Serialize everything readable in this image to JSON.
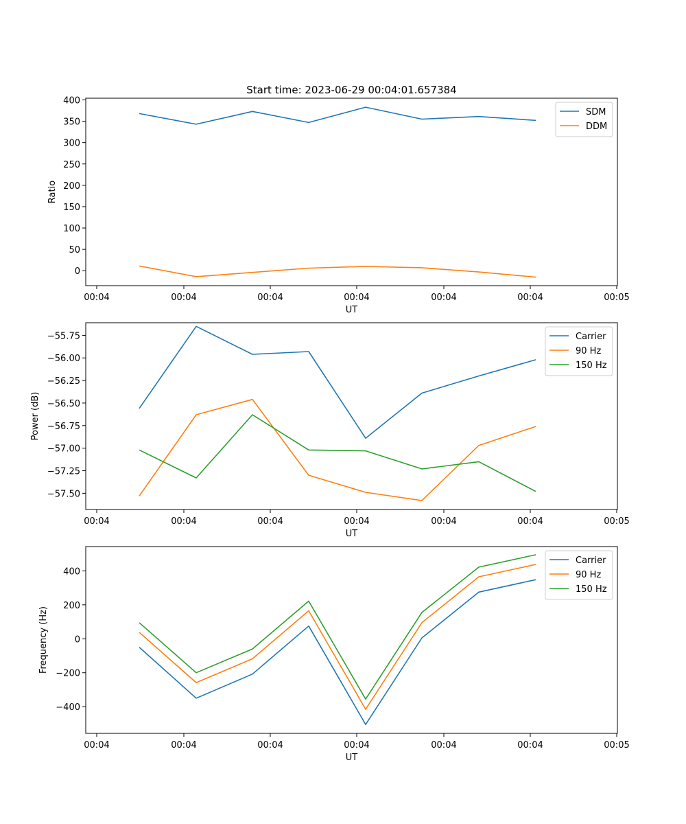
{
  "figure_title": "Start time: 2023-06-29 00:04:01.657384",
  "colors": {
    "carrier": "#1f77b4",
    "hz90": "#ff7f0e",
    "hz150": "#2ca02c"
  },
  "chart_data": [
    {
      "type": "line",
      "title": "Start time: 2023-06-29 00:04:01.657384",
      "xlabel": "UT",
      "ylabel": "Ratio",
      "x_tick_labels": [
        "00:04",
        "00:04",
        "00:04",
        "00:04",
        "00:04",
        "00:04",
        "00:04",
        "00:05"
      ],
      "y_ticks": [
        0,
        50,
        100,
        150,
        200,
        250,
        300,
        350,
        400
      ],
      "y_tick_labels": [
        "0",
        "50",
        "100",
        "150",
        "200",
        "250",
        "300",
        "350",
        "400"
      ],
      "ylim": [
        -35,
        404
      ],
      "legend_position": "top-right",
      "series": [
        {
          "name": "SDM",
          "color": "#1f77b4",
          "values": [
            368,
            343,
            373,
            347,
            383,
            355,
            361,
            352
          ]
        },
        {
          "name": "DDM",
          "color": "#ff7f0e",
          "values": [
            11,
            -14,
            -4,
            6,
            10,
            7,
            -3,
            -15
          ]
        }
      ]
    },
    {
      "type": "line",
      "xlabel": "UT",
      "ylabel": "Power (dB)",
      "x_tick_labels": [
        "00:04",
        "00:04",
        "00:04",
        "00:04",
        "00:04",
        "00:04",
        "00:04",
        "00:05"
      ],
      "y_ticks": [
        -57.5,
        -57.25,
        -57.0,
        -56.75,
        -56.5,
        -56.25,
        -56.0,
        -55.75
      ],
      "y_tick_labels": [
        "−57.50",
        "−57.25",
        "−57.00",
        "−56.75",
        "−56.50",
        "−56.25",
        "−56.00",
        "−55.75"
      ],
      "ylim": [
        -57.68,
        -55.61
      ],
      "legend_position": "top-right",
      "series": [
        {
          "name": "Carrier",
          "color": "#1f77b4",
          "values": [
            -56.56,
            -55.65,
            -55.96,
            -55.93,
            -56.89,
            -56.39,
            -56.2,
            -56.02
          ]
        },
        {
          "name": "90 Hz",
          "color": "#ff7f0e",
          "values": [
            -57.53,
            -56.63,
            -56.46,
            -57.3,
            -57.49,
            -57.58,
            -56.97,
            -56.76
          ]
        },
        {
          "name": "150 Hz",
          "color": "#2ca02c",
          "values": [
            -57.02,
            -57.33,
            -56.63,
            -57.02,
            -57.03,
            -57.23,
            -57.15,
            -57.48
          ]
        }
      ]
    },
    {
      "type": "line",
      "xlabel": "UT",
      "ylabel": "Frequency (Hz)",
      "x_tick_labels": [
        "00:04",
        "00:04",
        "00:04",
        "00:04",
        "00:04",
        "00:04",
        "00:04",
        "00:05"
      ],
      "y_ticks": [
        -400,
        -200,
        0,
        200,
        400
      ],
      "y_tick_labels": [
        "−400",
        "−200",
        "0",
        "200",
        "400"
      ],
      "ylim": [
        -557,
        543
      ],
      "legend_position": "top-right",
      "series": [
        {
          "name": "Carrier",
          "color": "#1f77b4",
          "values": [
            -50,
            -350,
            -208,
            75,
            -505,
            5,
            275,
            348
          ]
        },
        {
          "name": "90 Hz",
          "color": "#ff7f0e",
          "values": [
            38,
            -258,
            -118,
            165,
            -415,
            95,
            365,
            438
          ]
        },
        {
          "name": "150 Hz",
          "color": "#2ca02c",
          "values": [
            95,
            -200,
            -60,
            222,
            -355,
            155,
            422,
            495
          ]
        }
      ]
    }
  ]
}
